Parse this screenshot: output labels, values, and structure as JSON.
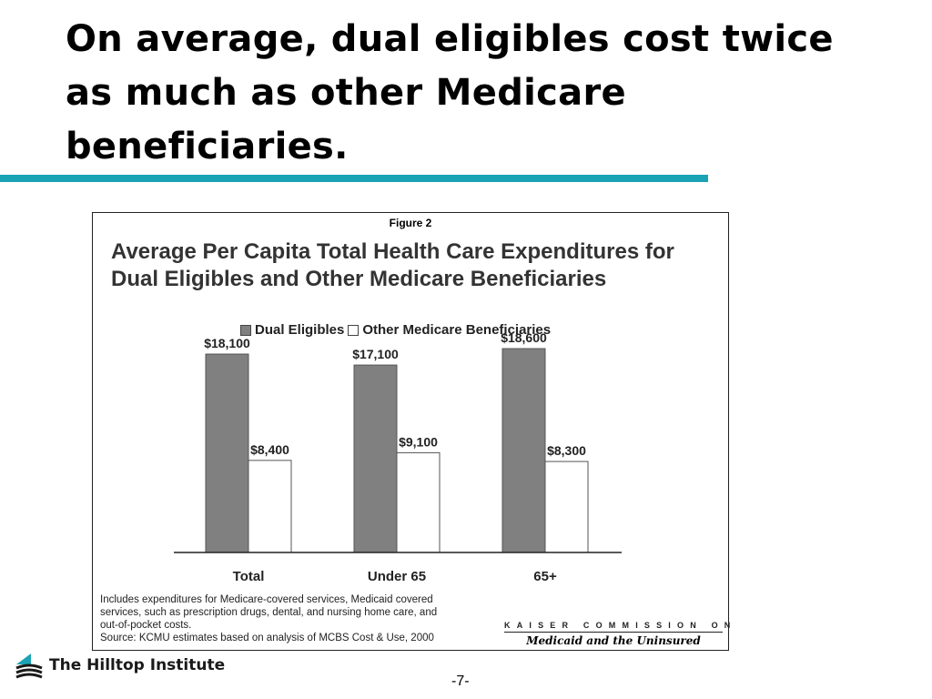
{
  "slide": {
    "title": "On average, dual eligibles cost twice as much as other Medicare beneficiaries.",
    "page_number": "-7-",
    "org_name": "The Hilltop Institute",
    "accent_color": "#1aa3b5"
  },
  "figure": {
    "label": "Figure 2",
    "notes": [
      "Includes expenditures for Medicare-covered services, Medicaid covered",
      "services, such as prescription drugs, dental, and nursing home care, and",
      "out-of-pocket costs.",
      "Source: KCMU estimates based on analysis of MCBS Cost & Use, 2000"
    ],
    "kaiser_line1": "KAISER COMMISSION ON",
    "kaiser_line2": "Medicaid and the Uninsured"
  },
  "chart_data": {
    "type": "bar",
    "title": "Average Per Capita Total Health Care Expenditures for Dual Eligibles and Other Medicare Beneficiaries",
    "categories": [
      "Total",
      "Under 65",
      "65+"
    ],
    "series": [
      {
        "name": "Dual Eligibles",
        "values": [
          18100,
          17100,
          18600
        ],
        "labels": [
          "$18,100",
          "$17,100",
          "$18,600"
        ],
        "color": "#808080"
      },
      {
        "name": "Other Medicare Beneficiaries",
        "values": [
          8400,
          9100,
          8300
        ],
        "labels": [
          "$8,400",
          "$9,100",
          "$8,300"
        ],
        "color": "#ffffff"
      }
    ],
    "ylim": [
      0,
      20000
    ],
    "grid": false,
    "legend_position": "top"
  }
}
